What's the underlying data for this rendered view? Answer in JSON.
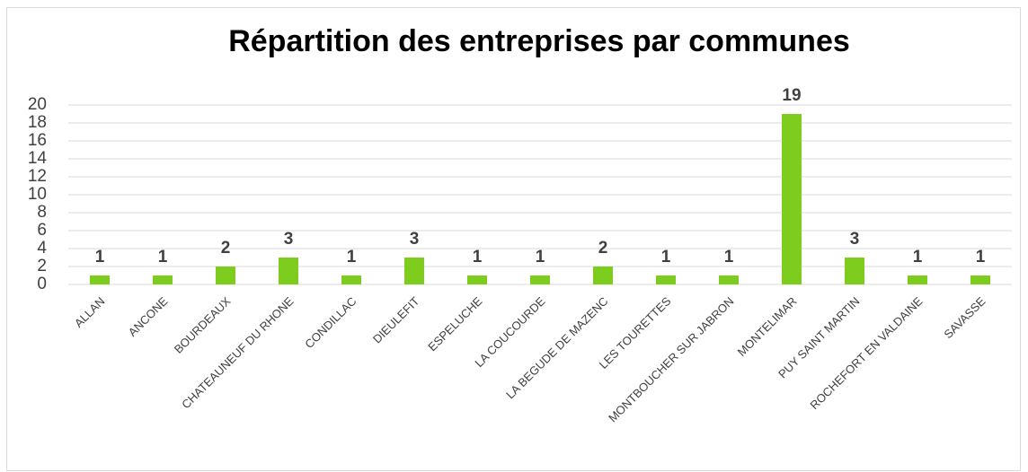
{
  "chart_data": {
    "type": "bar",
    "title": "Répartition des entreprises par communes",
    "categories": [
      "ALLAN",
      "ANCONE",
      "BOURDEAUX",
      "CHATEAUNEUF DU RHONE",
      "CONDILLAC",
      "DIEULEFIT",
      "ESPELUCHE",
      "LA COUCOURDE",
      "LA BEGUDE DE MAZENC",
      "LES TOURETTES",
      "MONTBOUCHER SUR JABRON",
      "MONTELIMAR",
      "PUY SAINT MARTIN",
      "ROCHEFORT EN VALDAINE",
      "SAVASSE"
    ],
    "values": [
      1,
      1,
      2,
      3,
      1,
      3,
      1,
      1,
      2,
      1,
      1,
      19,
      3,
      1,
      1
    ],
    "color": "#7dcc1e",
    "ylim": [
      0,
      20
    ],
    "yticks": [
      0,
      2,
      4,
      6,
      8,
      10,
      12,
      14,
      16,
      18,
      20
    ],
    "grid": true
  }
}
